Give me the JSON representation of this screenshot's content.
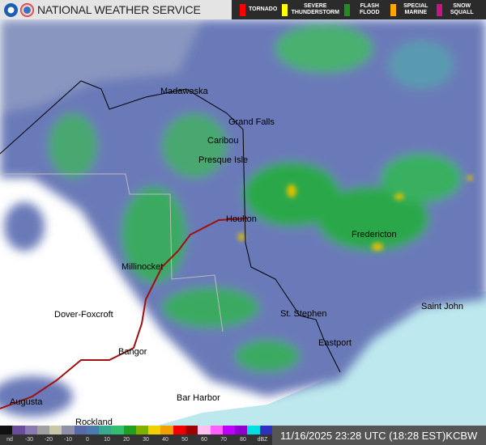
{
  "header": {
    "title": "NATIONAL WEATHER SERVICE",
    "warnings": [
      {
        "label": "TORNADO",
        "color": "#ff0000"
      },
      {
        "label": "SEVERE THUNDERSTORM",
        "color": "#ffff00"
      },
      {
        "label": "FLASH FLOOD",
        "color": "#228b22"
      },
      {
        "label": "SPECIAL MARINE",
        "color": "#ffa500"
      },
      {
        "label": "SNOW SQUALL",
        "color": "#c71585"
      }
    ]
  },
  "map": {
    "cities": [
      "Madawaska",
      "Grand Falls",
      "Caribou",
      "Presque Isle",
      "Houlton",
      "Fredericton",
      "Millinocket",
      "Dover-Foxcroft",
      "St. Stephen",
      "Saint John",
      "Eastport",
      "Bangor",
      "Bar Harbor",
      "Augusta",
      "Rockland"
    ]
  },
  "footer": {
    "scale_colors": [
      "#111111",
      "#6a4c9c",
      "#8a78b0",
      "#a0a0a0",
      "#c8c8a8",
      "#9090a8",
      "#5a6aa8",
      "#4a7ab0",
      "#3aa890",
      "#30c070",
      "#20a020",
      "#80b000",
      "#f0d000",
      "#f0a000",
      "#f00000",
      "#a00000",
      "#ffc0f0",
      "#ff60ff",
      "#c000ff",
      "#9000d0",
      "#00e0e0",
      "#3030c0"
    ],
    "scale_labels": [
      "nd",
      "-30",
      "-20",
      "-10",
      "0",
      "10",
      "20",
      "30",
      "40",
      "50",
      "60",
      "70",
      "80",
      "dBZ"
    ],
    "timestamp": "11/16/2025 23:28 UTC (18:28 EST)",
    "station": "KCBW"
  }
}
